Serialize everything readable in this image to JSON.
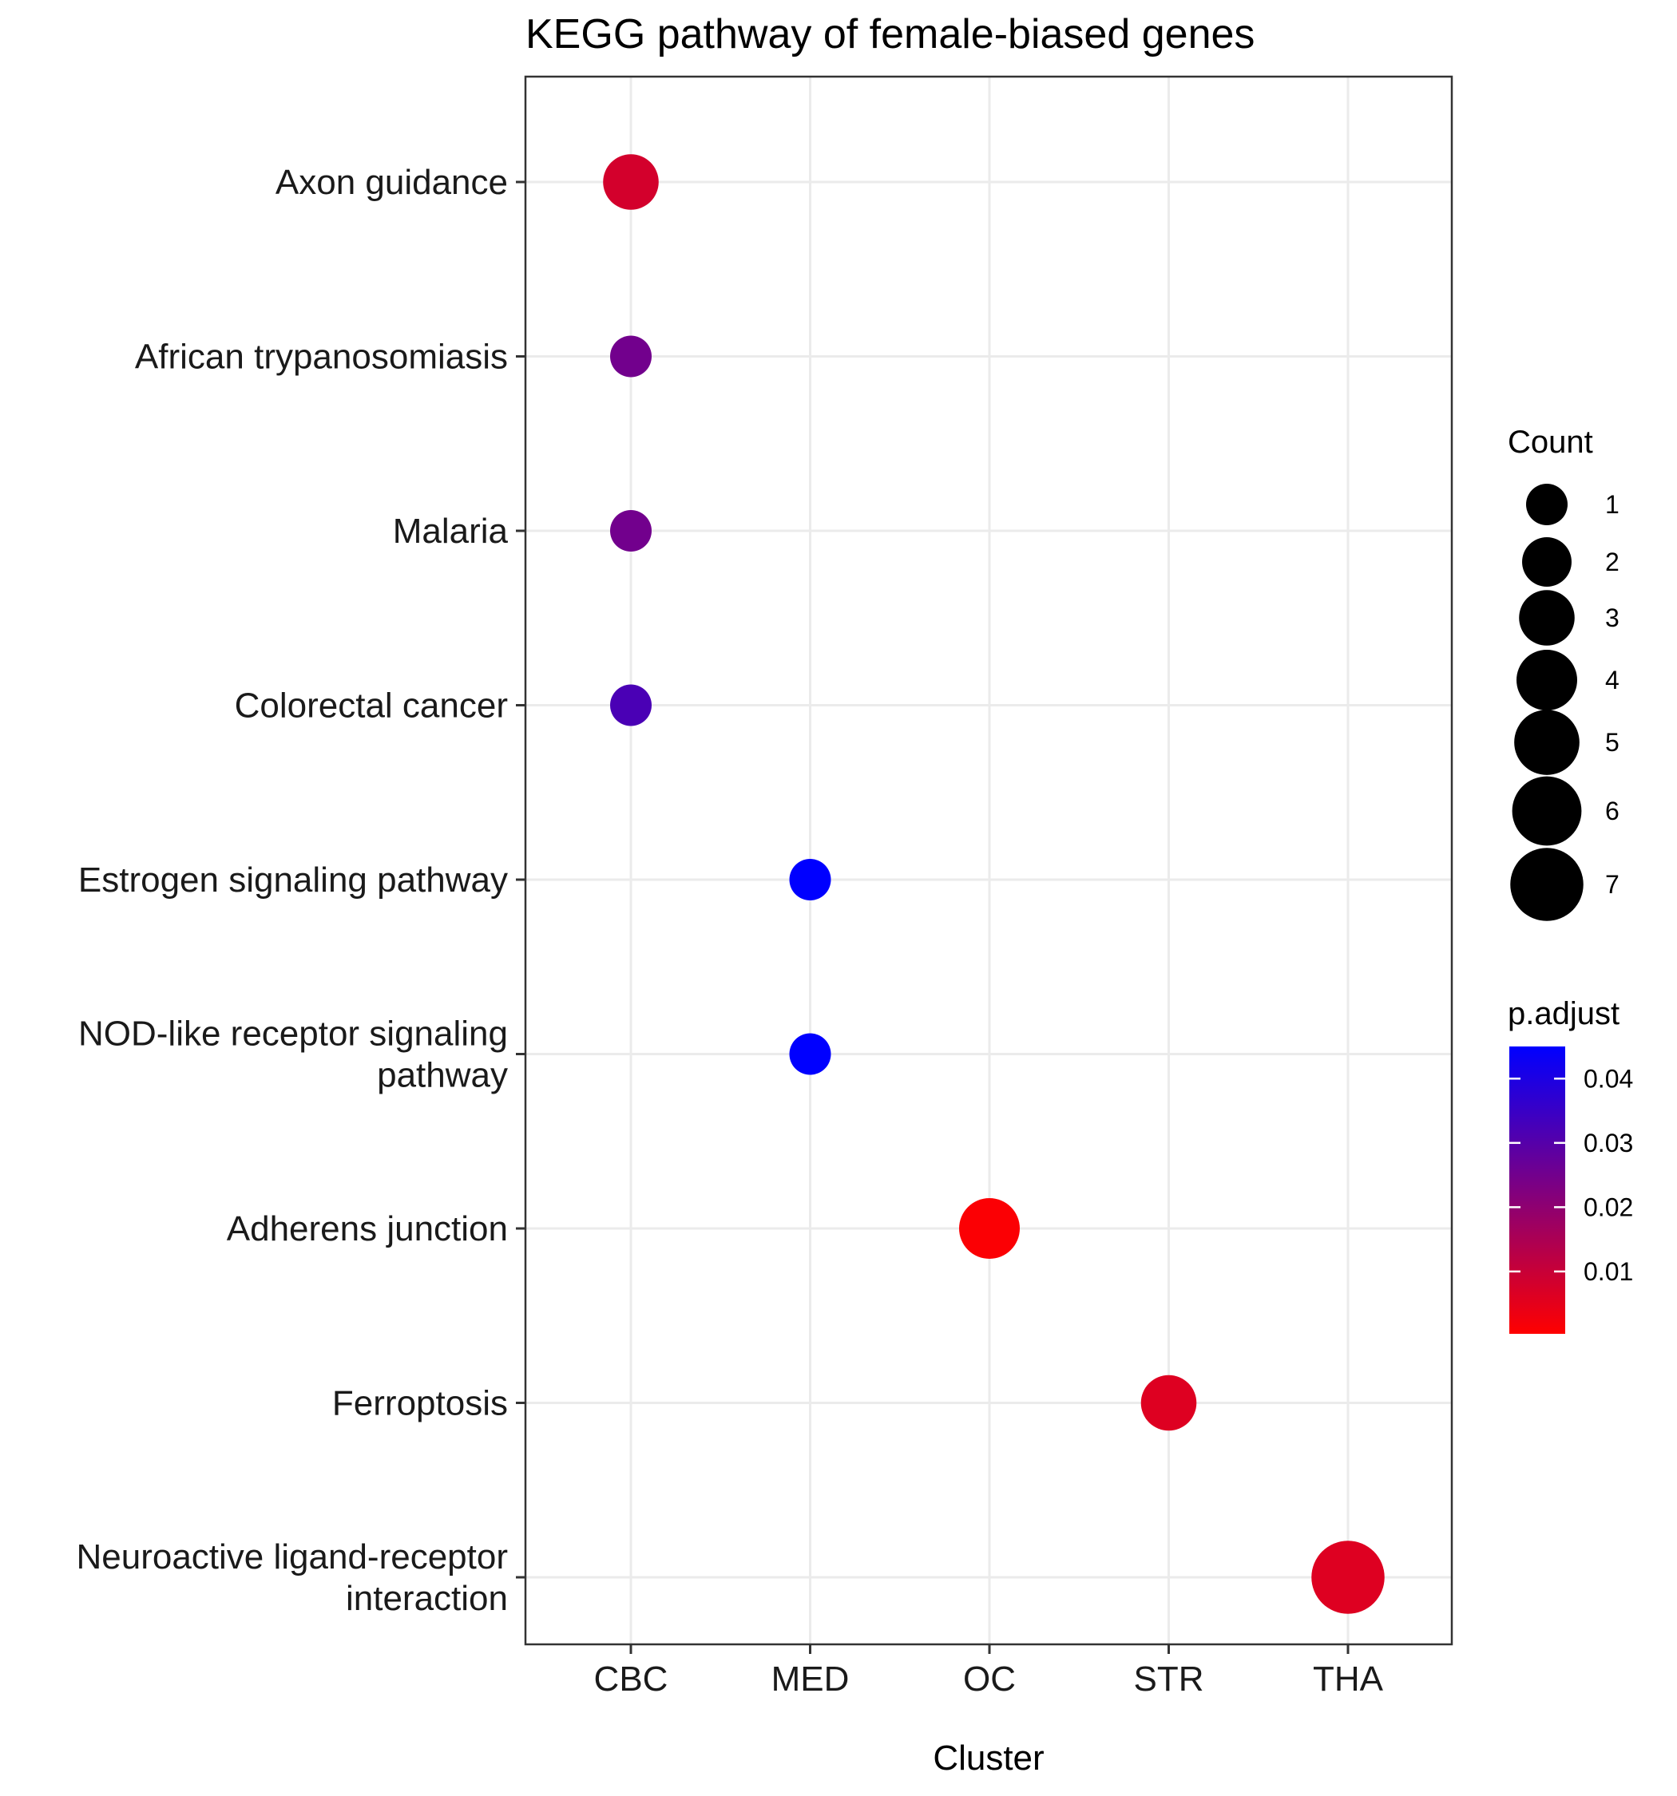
{
  "chart_data": {
    "type": "scatter",
    "title": "KEGG pathway of female-biased genes",
    "xlabel": "Cluster",
    "ylabel": "",
    "categories_x": [
      "CBC",
      "MED",
      "OC",
      "STR",
      "THA"
    ],
    "categories_y": [
      "Axon guidance",
      "African trypanosomiasis",
      "Malaria",
      "Colorectal cancer",
      "Estrogen signaling pathway",
      "NOD-like receptor signaling pathway",
      "Adherens junction",
      "Ferroptosis",
      "Neuroactive ligand-receptor interaction"
    ],
    "y_tick_labels": [
      [
        "Axon guidance"
      ],
      [
        "African trypanosomiasis"
      ],
      [
        "Malaria"
      ],
      [
        "Colorectal cancer"
      ],
      [
        "Estrogen signaling pathway"
      ],
      [
        "NOD-like receptor signaling",
        "pathway"
      ],
      [
        "Adherens junction"
      ],
      [
        "Ferroptosis"
      ],
      [
        "Neuroactive ligand-receptor",
        "interaction"
      ]
    ],
    "points": [
      {
        "x": "CBC",
        "y": "Axon guidance",
        "count": 3,
        "p_adjust": 0.008
      },
      {
        "x": "CBC",
        "y": "African trypanosomiasis",
        "count": 1,
        "p_adjust": 0.025
      },
      {
        "x": "CBC",
        "y": "Malaria",
        "count": 1,
        "p_adjust": 0.025
      },
      {
        "x": "CBC",
        "y": "Colorectal cancer",
        "count": 1,
        "p_adjust": 0.032
      },
      {
        "x": "MED",
        "y": "Estrogen signaling pathway",
        "count": 1,
        "p_adjust": 0.045
      },
      {
        "x": "MED",
        "y": "NOD-like receptor signaling pathway",
        "count": 1,
        "p_adjust": 0.045
      },
      {
        "x": "OC",
        "y": "Adherens junction",
        "count": 4,
        "p_adjust": 0.001
      },
      {
        "x": "STR",
        "y": "Ferroptosis",
        "count": 3,
        "p_adjust": 0.006
      },
      {
        "x": "THA",
        "y": "Neuroactive ligand-receptor interaction",
        "count": 7,
        "p_adjust": 0.006
      }
    ],
    "legend_size": {
      "title": "Count",
      "values": [
        1,
        2,
        3,
        4,
        5,
        6,
        7
      ],
      "labels": [
        "1",
        "2",
        "3",
        "4",
        "5",
        "6",
        "7"
      ]
    },
    "legend_color": {
      "title": "p.adjust",
      "low_color": "#ff0000",
      "high_color": "#0000ff",
      "range": [
        0.0003,
        0.045
      ],
      "ticks": [
        0.01,
        0.02,
        0.03,
        0.04
      ],
      "tick_labels": [
        "0.01",
        "0.02",
        "0.03",
        "0.04"
      ]
    },
    "grid": true,
    "legend_position": "right"
  }
}
